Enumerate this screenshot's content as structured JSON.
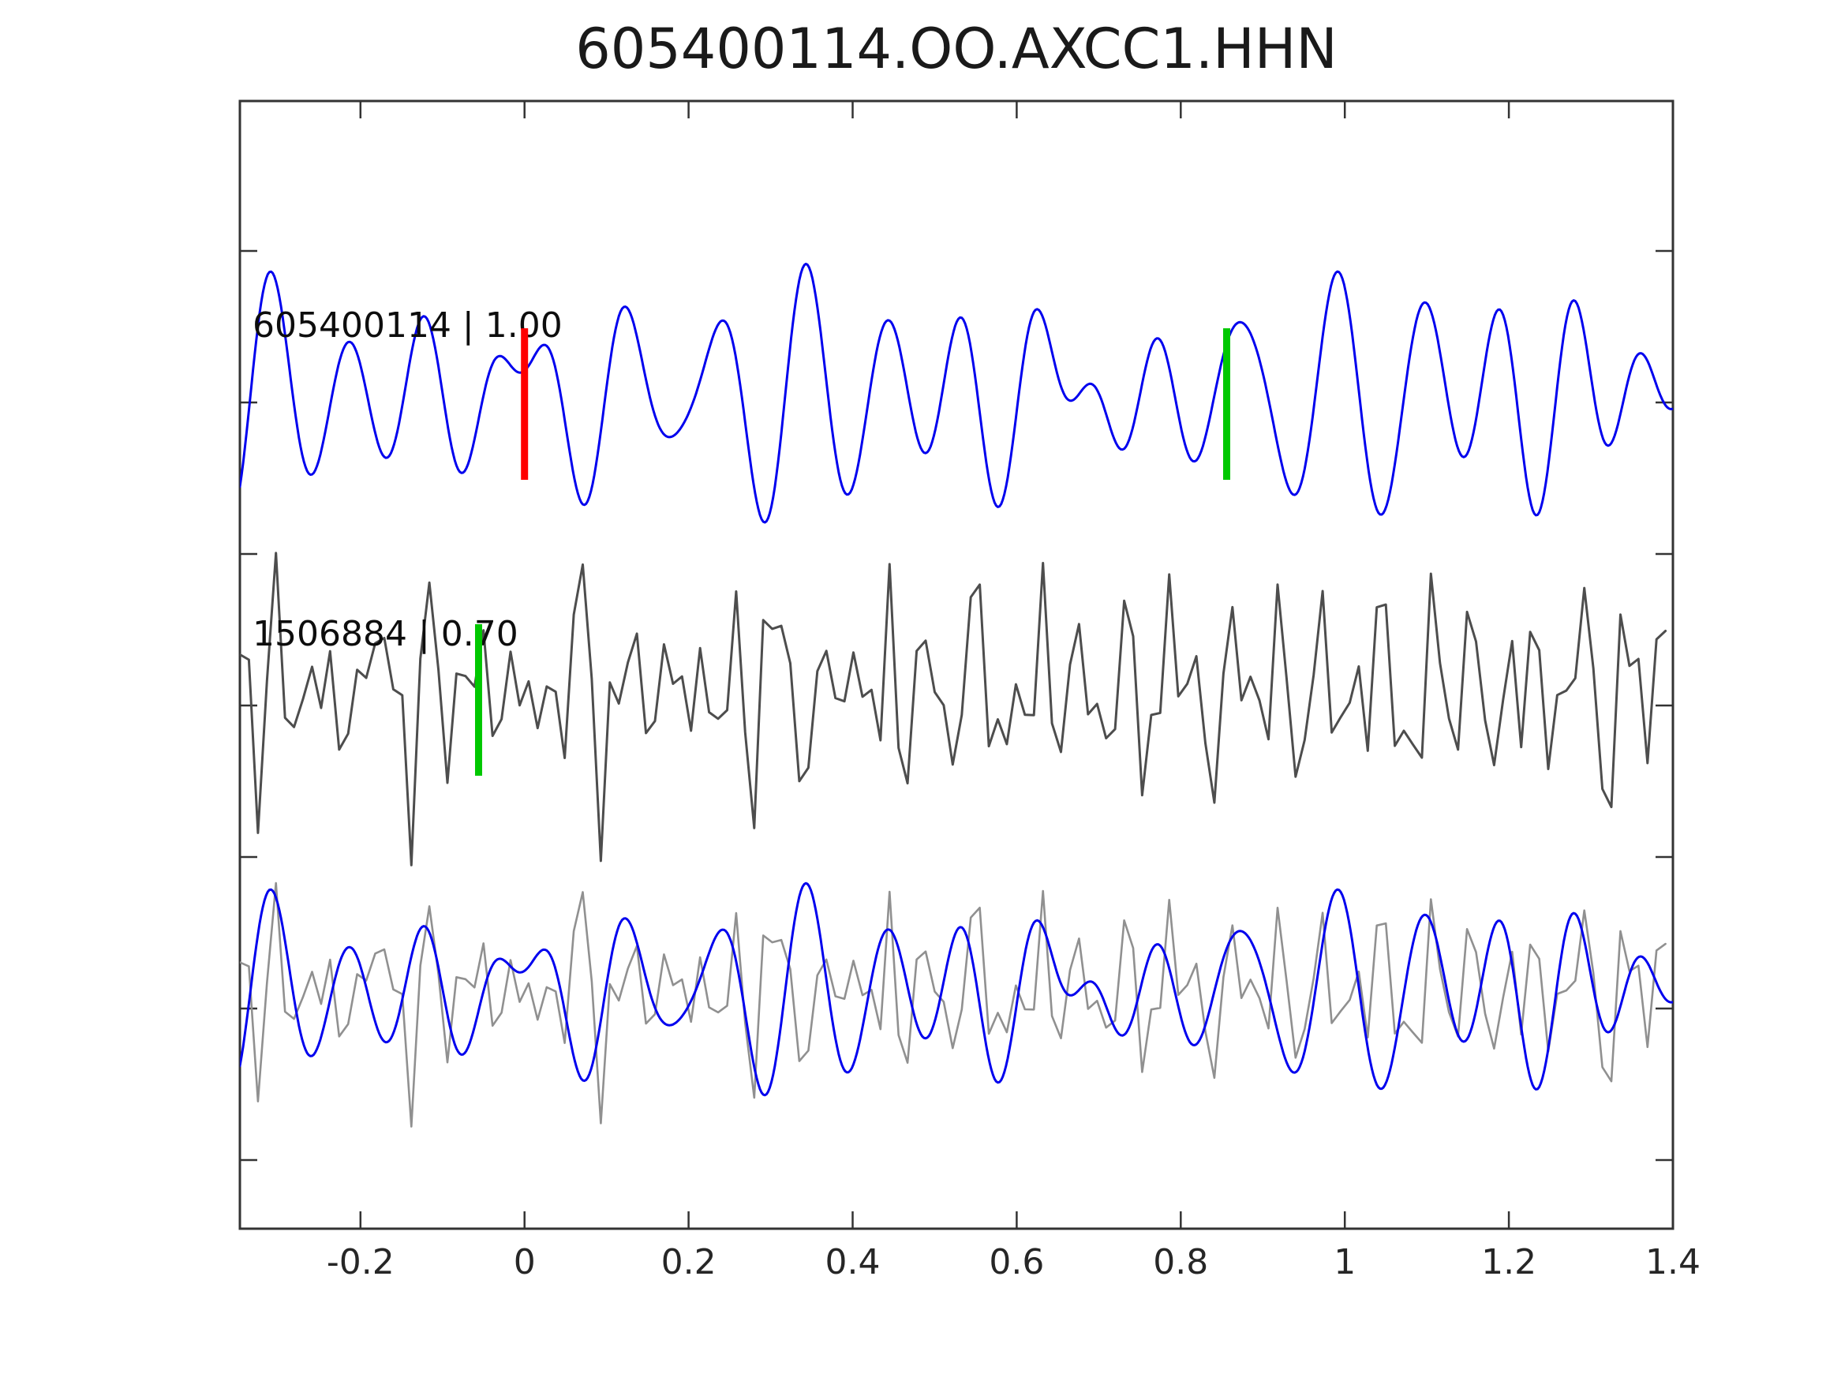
{
  "title": "605400114.OO.AXCC1.HHN",
  "colors": {
    "template_trace": "#0000ee",
    "detection_trace": "#4d4d4d",
    "overlay_detection_trace": "#909090",
    "reference_marker": "#ff0000",
    "pick_marker": "#00c800",
    "frame": "#333333",
    "background": "#ffffff"
  },
  "chart_data": {
    "type": "line",
    "title": "605400114.OO.AXCC1.HHN",
    "xlabel": "",
    "ylabel": "",
    "grid": false,
    "legend": "none",
    "xlim": [
      -0.347,
      1.4
    ],
    "xticks": [
      {
        "value": -0.2,
        "label": "-0.2"
      },
      {
        "value": 0,
        "label": "0"
      },
      {
        "value": 0.2,
        "label": "0.2"
      },
      {
        "value": 0.4,
        "label": "0.4"
      },
      {
        "value": 0.6,
        "label": "0.6"
      },
      {
        "value": 0.8,
        "label": "0.8"
      },
      {
        "value": 1,
        "label": "1"
      },
      {
        "value": 1.2,
        "label": "1.2"
      },
      {
        "value": 1.4,
        "label": "1.4"
      }
    ],
    "yticks_labeled": false,
    "series": {
      "event_605400114": {
        "color": "#0000ee",
        "sample_dt": 0.002,
        "line_width": 3,
        "components": [
          [
            70,
            9.3,
            0.8
          ],
          [
            55,
            10.7,
            3.9
          ],
          [
            40,
            7.9,
            2.2
          ],
          [
            35,
            12.1,
            5.6
          ],
          [
            25,
            6.1,
            1.4
          ],
          [
            20,
            13.7,
            4.7
          ],
          [
            12,
            4.3,
            2.9
          ]
        ]
      },
      "event_1506884": {
        "color": "#4d4d4d",
        "sample_dt": 0.011,
        "line_width": 3,
        "components": [
          [
            55,
            16.4,
            1.1
          ],
          [
            50,
            21.3,
            4.4
          ],
          [
            45,
            26.7,
            2.7
          ],
          [
            38,
            31.9,
            5.9
          ],
          [
            30,
            38.3,
            0.6
          ],
          [
            28,
            12.2,
            3.2
          ],
          [
            22,
            47.1,
            1.8
          ],
          [
            18,
            8.3,
            5.0
          ]
        ]
      }
    },
    "rows": [
      {
        "label": "605400114 | 1.00",
        "event_id": "605400114",
        "correlation": "1.00",
        "traces": [
          {
            "series": "event_605400114",
            "scale": 1.0
          }
        ],
        "markers": [
          {
            "t": 0.0,
            "color": "#ff0000",
            "type": "reference"
          },
          {
            "t": 0.856,
            "color": "#00c800",
            "type": "pick"
          }
        ]
      },
      {
        "label": "1506884 | 0.70",
        "event_id": "1506884",
        "correlation": "0.70",
        "traces": [
          {
            "series": "event_1506884",
            "scale": 1.0
          }
        ],
        "markers": [
          {
            "t": -0.056,
            "color": "#00c800",
            "type": "pick"
          }
        ]
      },
      {
        "label": "",
        "event_id": "overlay",
        "correlation": "",
        "traces": [
          {
            "series": "event_1506884",
            "scale": 0.78,
            "color_override": "#909090",
            "line_width": 2.6
          },
          {
            "series": "event_605400114",
            "scale": 0.82
          }
        ],
        "markers": []
      }
    ]
  }
}
